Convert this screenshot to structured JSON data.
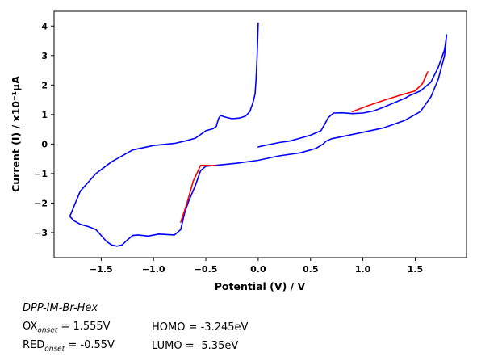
{
  "chart_data": {
    "type": "line",
    "xlabel": "Potential (V) / V",
    "ylabel": "Current (I) / x10⁻¹μA",
    "xlim": [
      -1.95,
      1.99
    ],
    "ylim": [
      -3.85,
      4.5
    ],
    "xticks": [
      -1.5,
      -1.0,
      -0.5,
      0.0,
      0.5,
      1.0,
      1.5
    ],
    "xtick_labels": [
      "−1.5",
      "−1.0",
      "−0.5",
      "0.0",
      "0.5",
      "1.0",
      "1.5"
    ],
    "yticks": [
      -3,
      -2,
      -1,
      0,
      1,
      2,
      3,
      4
    ],
    "ytick_labels": [
      "−3",
      "−2",
      "−1",
      "0",
      "1",
      "2",
      "3",
      "4"
    ],
    "grid": false,
    "series": [
      {
        "color": "#0000ff",
        "x": [
          0.0,
          -0.01,
          -0.02,
          -0.03,
          -0.05,
          -0.08,
          -0.12,
          -0.18,
          -0.25,
          -0.3,
          -0.33,
          -0.36,
          -0.38,
          -0.4,
          -0.43,
          -0.5,
          -0.6,
          -0.7,
          -0.8,
          -1.0,
          -1.2,
          -1.4,
          -1.55,
          -1.7,
          -1.8,
          -1.76,
          -1.7,
          -1.62,
          -1.55,
          -1.5,
          -1.45,
          -1.4,
          -1.35,
          -1.3,
          -1.25,
          -1.2,
          -1.15,
          -1.05,
          -0.95,
          -0.8,
          -0.74,
          -0.72,
          -0.7,
          -0.66,
          -0.6,
          -0.55,
          -0.5,
          -0.4,
          -0.2,
          0.0,
          0.2,
          0.4,
          0.55,
          0.62,
          0.65,
          0.7,
          0.8,
          1.0,
          1.2,
          1.4,
          1.55,
          1.65,
          1.72,
          1.78,
          1.8,
          1.78,
          1.72,
          1.65,
          1.55,
          1.45,
          1.4,
          1.3,
          1.2,
          1.1,
          1.0,
          0.9,
          0.8,
          0.72,
          0.67,
          0.64,
          0.6,
          0.5,
          0.4,
          0.3,
          0.2,
          0.1,
          0.02,
          0.0
        ],
        "y": [
          4.1,
          3.0,
          2.2,
          1.7,
          1.4,
          1.1,
          0.95,
          0.88,
          0.86,
          0.9,
          0.93,
          0.97,
          0.85,
          0.6,
          0.52,
          0.45,
          0.2,
          0.1,
          0.02,
          -0.05,
          -0.2,
          -0.6,
          -1.0,
          -1.6,
          -2.45,
          -2.6,
          -2.72,
          -2.8,
          -2.9,
          -3.1,
          -3.3,
          -3.42,
          -3.46,
          -3.42,
          -3.25,
          -3.1,
          -3.08,
          -3.12,
          -3.05,
          -3.08,
          -2.9,
          -2.6,
          -2.3,
          -1.9,
          -1.4,
          -0.9,
          -0.75,
          -0.72,
          -0.65,
          -0.55,
          -0.4,
          -0.3,
          -0.15,
          0.0,
          0.1,
          0.18,
          0.25,
          0.4,
          0.55,
          0.8,
          1.1,
          1.6,
          2.2,
          3.0,
          3.7,
          3.2,
          2.6,
          2.1,
          1.8,
          1.65,
          1.55,
          1.4,
          1.25,
          1.12,
          1.05,
          1.03,
          1.06,
          1.05,
          0.9,
          0.7,
          0.45,
          0.3,
          0.2,
          0.1,
          0.05,
          -0.02,
          -0.08,
          -0.1
        ]
      },
      {
        "color": "#ff0000",
        "x": [
          -0.74,
          -0.68,
          -0.62,
          -0.55,
          -0.5,
          -0.45,
          -0.4
        ],
        "y": [
          -2.65,
          -2.0,
          -1.25,
          -0.72,
          -0.72,
          -0.73,
          -0.73
        ]
      },
      {
        "color": "#ff0000",
        "x": [
          0.9,
          1.05,
          1.2,
          1.35,
          1.5,
          1.57,
          1.62
        ],
        "y": [
          1.1,
          1.3,
          1.48,
          1.65,
          1.8,
          2.05,
          2.45
        ]
      }
    ]
  },
  "annotations": {
    "compound": "DPP-IM-Br-Hex",
    "ox_label": "OX",
    "ox_sub": "onset",
    "ox_value": " = 1.555V",
    "red_label": "RED",
    "red_sub": "onset",
    "red_value": " = -0.55V",
    "homo": "HOMO = -3.245eV",
    "lumo": "LUMO = -5.35eV"
  }
}
